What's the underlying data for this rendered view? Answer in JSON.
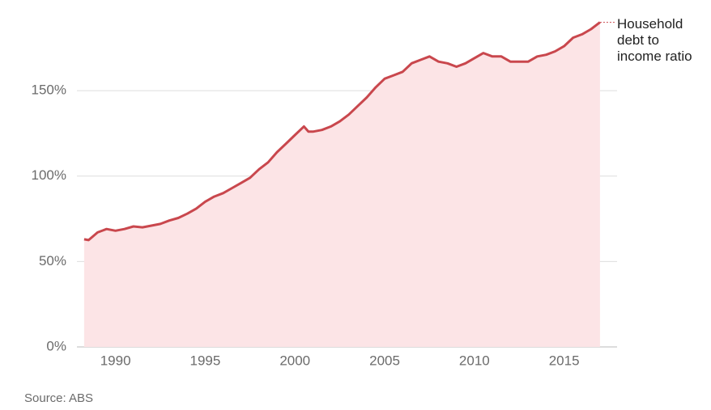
{
  "chart_data": {
    "type": "area",
    "annotation": "Household debt to income ratio",
    "source": "Source: ABS",
    "color": "#c9474d",
    "fill": "#fce4e6",
    "x": [
      1988.25,
      1988.5,
      1989.0,
      1989.5,
      1990.0,
      1990.5,
      1991.0,
      1991.5,
      1992.0,
      1992.5,
      1993.0,
      1993.5,
      1994.0,
      1994.5,
      1995.0,
      1995.5,
      1996.0,
      1996.5,
      1997.0,
      1997.5,
      1998.0,
      1998.5,
      1999.0,
      1999.5,
      2000.0,
      2000.5,
      2000.75,
      2001.0,
      2001.5,
      2002.0,
      2002.5,
      2003.0,
      2003.5,
      2004.0,
      2004.5,
      2005.0,
      2005.5,
      2006.0,
      2006.5,
      2007.0,
      2007.5,
      2008.0,
      2008.5,
      2009.0,
      2009.5,
      2010.0,
      2010.5,
      2011.0,
      2011.5,
      2012.0,
      2012.5,
      2013.0,
      2013.5,
      2014.0,
      2014.5,
      2015.0,
      2015.5,
      2016.0,
      2016.5,
      2017.0
    ],
    "values": [
      63,
      62.5,
      67,
      69,
      68,
      69,
      70.5,
      70,
      71,
      72,
      74,
      75.5,
      78,
      81,
      85,
      88,
      90,
      93,
      96,
      99,
      104,
      108,
      114,
      119,
      124,
      129,
      126,
      126,
      127,
      129,
      132,
      136,
      141,
      146,
      152,
      157,
      159,
      161,
      166,
      168,
      170,
      167,
      166,
      164,
      166,
      169,
      172,
      170,
      170,
      167,
      167,
      167,
      170,
      171,
      173,
      176,
      181,
      183,
      186,
      190
    ],
    "xlim": [
      1987.85,
      2017.95
    ],
    "ylim": [
      0,
      195
    ],
    "xticks": [
      1990,
      1995,
      2000,
      2005,
      2010,
      2015
    ],
    "yticks": [
      {
        "value": 0,
        "label": "0%"
      },
      {
        "value": 50,
        "label": "50%"
      },
      {
        "value": 100,
        "label": "100%"
      },
      {
        "value": 150,
        "label": "150%"
      }
    ],
    "grid": true
  }
}
